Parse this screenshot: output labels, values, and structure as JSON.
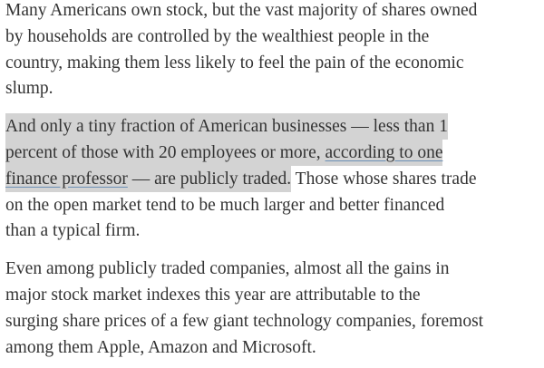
{
  "paragraphs": [
    {
      "lines": [
        "Many Americans own stock, but the vast majority of shares owned",
        "by households are controlled by the wealthiest people in the",
        "country, making them less likely to feel the pain of the economic",
        "slump."
      ]
    },
    {
      "highlighted": [
        "And only a tiny fraction of American businesses — less than 1",
        "percent of those with 20 employees or more,",
        "— are publicly traded."
      ],
      "link": [
        "according to one",
        "finance professor"
      ],
      "lines": [
        "Those whose shares trade",
        "on the open market tend to be much larger and better financed",
        "than a typical firm."
      ]
    },
    {
      "lines": [
        "Even among publicly traded companies, almost all the gains in",
        "major stock market indexes this year are attributable to the",
        "surging share prices of a few giant technology companies, foremost",
        "among them Apple, Amazon and Microsoft."
      ]
    }
  ]
}
